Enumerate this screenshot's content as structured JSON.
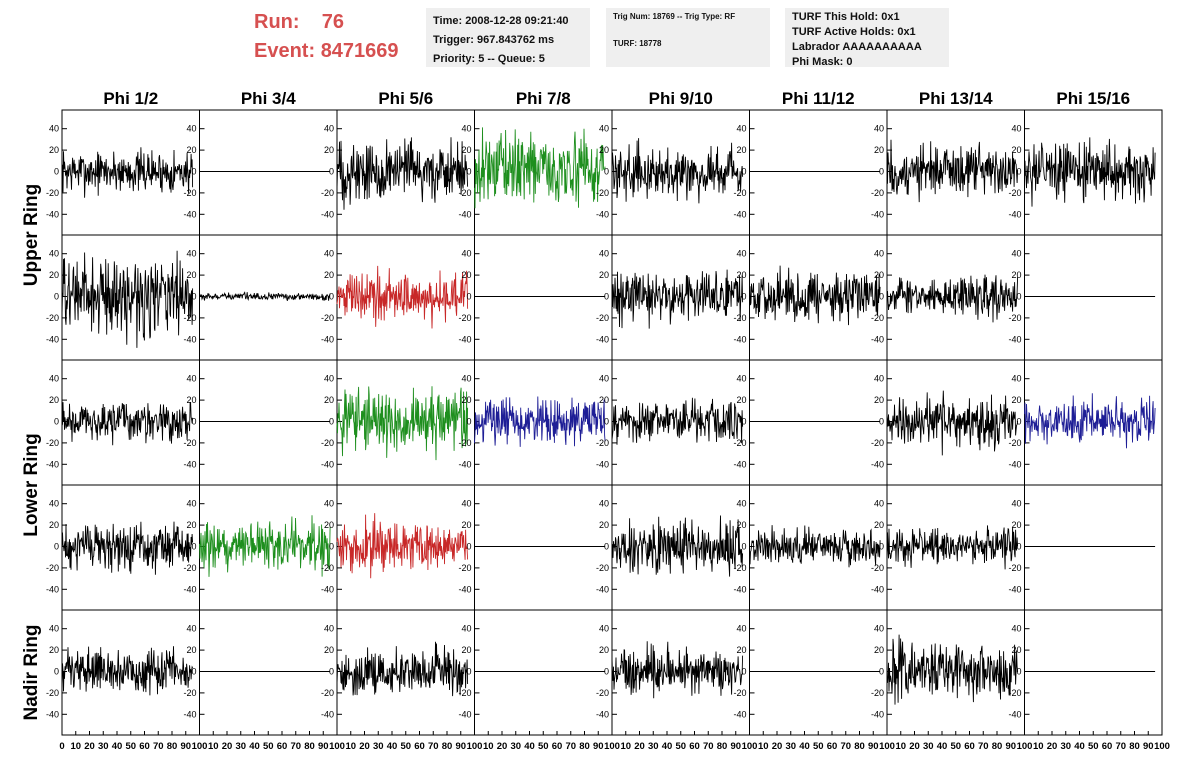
{
  "header": {
    "run_label": "Run:",
    "run_value": "76",
    "event_label": "Event:",
    "event_value": "8471669"
  },
  "info_time": {
    "line1": "Time: 2008-12-28 09:21:40",
    "line2": "Trigger: 967.843762 ms",
    "line3": "Priority: 5 -- Queue: 5"
  },
  "info_trig": {
    "line1": "Trig Num: 18769 -- Trig Type: RF",
    "line2": "TURF: 18778"
  },
  "info_turf": {
    "line1": "TURF This Hold: 0x1",
    "line2": "TURF Active Holds: 0x1",
    "line3": "Labrador AAAAAAAAAA",
    "line4": "Phi Mask: 0"
  },
  "chart_data": {
    "type": "line",
    "columns": [
      "Phi 1/2",
      "Phi 3/4",
      "Phi 5/6",
      "Phi 7/8",
      "Phi 9/10",
      "Phi 11/12",
      "Phi 13/14",
      "Phi 15/16"
    ],
    "row_labels": [
      "Upper Ring",
      "Lower Ring",
      "Nadir Ring"
    ],
    "rows_per_ring": [
      2,
      2,
      1
    ],
    "ylim": [
      -50,
      50
    ],
    "yticks": [
      -40,
      -20,
      0,
      20,
      40
    ],
    "xlim": [
      0,
      100
    ],
    "xticks": [
      0,
      10,
      20,
      30,
      40,
      50,
      60,
      70,
      80,
      90,
      100
    ],
    "series_end_x": 95,
    "colors": {
      "black": "#000000",
      "green": "#1e8f1e",
      "red": "#c82828",
      "blue": "#1e1e96"
    },
    "panels": [
      [
        {
          "c": "black",
          "a": 12
        },
        {
          "c": "black",
          "a": 0
        },
        {
          "c": "black",
          "a": 18
        },
        {
          "c": "green",
          "a": 20
        },
        {
          "c": "black",
          "a": 14
        },
        {
          "c": "black",
          "a": 0
        },
        {
          "c": "black",
          "a": 15
        },
        {
          "c": "black",
          "a": 16
        }
      ],
      [
        {
          "c": "black",
          "a": 22
        },
        {
          "c": "black",
          "a": 2
        },
        {
          "c": "red",
          "a": 14
        },
        {
          "c": "black",
          "a": 0
        },
        {
          "c": "black",
          "a": 14
        },
        {
          "c": "black",
          "a": 14
        },
        {
          "c": "black",
          "a": 11
        },
        {
          "c": "black",
          "a": 0
        }
      ],
      [
        {
          "c": "black",
          "a": 11
        },
        {
          "c": "black",
          "a": 0
        },
        {
          "c": "green",
          "a": 17
        },
        {
          "c": "blue",
          "a": 13
        },
        {
          "c": "black",
          "a": 12
        },
        {
          "c": "black",
          "a": 0
        },
        {
          "c": "black",
          "a": 14
        },
        {
          "c": "blue",
          "a": 12
        }
      ],
      [
        {
          "c": "black",
          "a": 13
        },
        {
          "c": "green",
          "a": 14
        },
        {
          "c": "red",
          "a": 14
        },
        {
          "c": "black",
          "a": 0
        },
        {
          "c": "black",
          "a": 15
        },
        {
          "c": "black",
          "a": 10
        },
        {
          "c": "black",
          "a": 10
        },
        {
          "c": "black",
          "a": 0
        }
      ],
      [
        {
          "c": "black",
          "a": 12
        },
        {
          "c": "black",
          "a": 0
        },
        {
          "c": "black",
          "a": 13
        },
        {
          "c": "black",
          "a": 0
        },
        {
          "c": "black",
          "a": 13
        },
        {
          "c": "black",
          "a": 0
        },
        {
          "c": "black",
          "a": 16
        },
        {
          "c": "black",
          "a": 0
        }
      ]
    ]
  }
}
